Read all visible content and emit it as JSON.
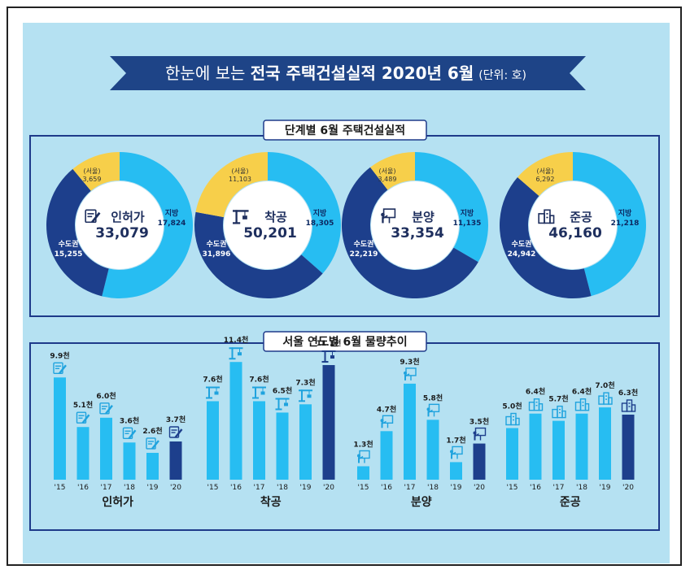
{
  "banner": {
    "prefix": "한눈에 보는 ",
    "title": "전국 주택건설실적 2020년 6월",
    "unit": "(단위: 호)"
  },
  "section1": {
    "title": "단계별 6월 주택건설실적"
  },
  "section2": {
    "title": "서울 연도별 6월 물량추이"
  },
  "colors": {
    "regional": "#27bdf2",
    "metro": "#1d3f8c",
    "seoul": "#f7cf4a",
    "bar": "#27bdf2",
    "bar_current": "#1d3f8c",
    "banner": "#1e4487",
    "border": "#1e3a8a"
  },
  "chart_data": [
    {
      "type": "pie",
      "title": "인허가",
      "total": "33,079",
      "slices": [
        {
          "label": "지방",
          "value": 17824,
          "value_label": "17,824"
        },
        {
          "label": "수도권",
          "value": 15255,
          "value_label": "15,255"
        }
      ],
      "seoul": {
        "label": "(서울)",
        "value": 3659,
        "value_label": "3,659"
      }
    },
    {
      "type": "pie",
      "title": "착공",
      "total": "50,201",
      "slices": [
        {
          "label": "지방",
          "value": 18305,
          "value_label": "18,305"
        },
        {
          "label": "수도권",
          "value": 31896,
          "value_label": "31,896"
        }
      ],
      "seoul": {
        "label": "(서울)",
        "value": 11103,
        "value_label": "11,103"
      }
    },
    {
      "type": "pie",
      "title": "분양",
      "total": "33,354",
      "slices": [
        {
          "label": "지방",
          "value": 11135,
          "value_label": "11,135"
        },
        {
          "label": "수도권",
          "value": 22219,
          "value_label": "22,219"
        }
      ],
      "seoul": {
        "label": "(서울)",
        "value": 3489,
        "value_label": "3,489"
      }
    },
    {
      "type": "pie",
      "title": "준공",
      "total": "46,160",
      "slices": [
        {
          "label": "지방",
          "value": 21218,
          "value_label": "21,218"
        },
        {
          "label": "수도권",
          "value": 24942,
          "value_label": "24,942"
        }
      ],
      "seoul": {
        "label": "(서울)",
        "value": 6292,
        "value_label": "6,292"
      }
    },
    {
      "type": "bar",
      "title": "인허가",
      "categories": [
        "'15",
        "'16",
        "'17",
        "'18",
        "'19",
        "'20"
      ],
      "values": [
        9.9,
        5.1,
        6.0,
        3.6,
        2.6,
        3.7
      ],
      "value_labels": [
        "9.9천",
        "5.1천",
        "6.0천",
        "3.6천",
        "2.6천",
        "3.7천"
      ],
      "icon": "document-pen-icon"
    },
    {
      "type": "bar",
      "title": "착공",
      "categories": [
        "'15",
        "'16",
        "'17",
        "'18",
        "'19",
        "'20"
      ],
      "values": [
        7.6,
        11.4,
        7.6,
        6.5,
        7.3,
        11.1
      ],
      "value_labels": [
        "7.6천",
        "11.4천",
        "7.6천",
        "6.5천",
        "7.3천",
        "11.1천"
      ],
      "icon": "crane-icon"
    },
    {
      "type": "bar",
      "title": "분양",
      "categories": [
        "'15",
        "'16",
        "'17",
        "'18",
        "'19",
        "'20"
      ],
      "values": [
        1.3,
        4.7,
        9.3,
        5.8,
        1.7,
        3.5
      ],
      "value_labels": [
        "1.3천",
        "4.7천",
        "9.3천",
        "5.8천",
        "1.7천",
        "3.5천"
      ],
      "icon": "presenter-board-icon"
    },
    {
      "type": "bar",
      "title": "준공",
      "categories": [
        "'15",
        "'16",
        "'17",
        "'18",
        "'19",
        "'20"
      ],
      "values": [
        5.0,
        6.4,
        5.7,
        6.4,
        7.0,
        6.3
      ],
      "value_labels": [
        "5.0천",
        "6.4천",
        "5.7천",
        "6.4천",
        "7.0천",
        "6.3천"
      ],
      "icon": "buildings-icon"
    }
  ]
}
